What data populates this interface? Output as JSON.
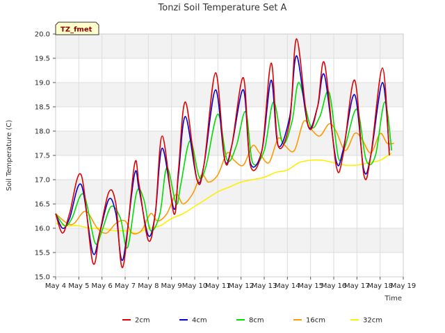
{
  "chart_data": {
    "type": "line",
    "title": "Tonzi Soil Temperature Set A",
    "xlabel": "Time",
    "ylabel": "Soil Temperature (C)",
    "station_tag": "TZ_fmet",
    "ylim": [
      15.0,
      20.0
    ],
    "xlim": [
      0,
      15
    ],
    "yticks": [
      "15.0",
      "15.5",
      "16.0",
      "16.5",
      "17.0",
      "17.5",
      "18.0",
      "18.5",
      "19.0",
      "19.5",
      "20.0"
    ],
    "xticks": [
      "May 4",
      "May 5",
      "May 6",
      "May 7",
      "May 8",
      "May 9",
      "May 10",
      "May 11",
      "May 12",
      "May 13",
      "May 14",
      "May 15",
      "May 16",
      "May 17",
      "May 18",
      "May 19"
    ],
    "grid": true,
    "legend_position": "bottom",
    "colors": {
      "2cm": "#dd0000",
      "4cm": "#0000cc",
      "8cm": "#00dd00",
      "16cm": "#ff9900",
      "32cm": "#ffee00"
    },
    "series": [
      {
        "name": "2cm",
        "x": [
          0.0,
          0.3,
          0.6,
          1.1,
          1.6,
          1.9,
          2.3,
          2.6,
          2.9,
          3.4,
          3.6,
          4.0,
          4.3,
          4.6,
          5.1,
          5.3,
          5.6,
          6.1,
          6.4,
          6.9,
          7.3,
          7.6,
          8.1,
          8.4,
          8.9,
          9.3,
          9.6,
          10.1,
          10.4,
          10.9,
          11.3,
          11.6,
          12.1,
          12.4,
          12.9,
          13.3,
          13.6,
          14.1,
          14.4
        ],
        "y": [
          16.3,
          15.9,
          16.3,
          17.1,
          15.3,
          15.9,
          16.75,
          16.5,
          15.2,
          17.3,
          16.9,
          15.75,
          16.3,
          17.9,
          16.3,
          17.2,
          18.6,
          17.0,
          17.3,
          19.2,
          17.4,
          17.7,
          19.1,
          17.3,
          17.6,
          19.4,
          17.7,
          18.2,
          19.9,
          18.1,
          18.5,
          19.4,
          17.3,
          17.5,
          19.05,
          17.1,
          17.5,
          19.3,
          17.5
        ]
      },
      {
        "name": "4cm",
        "x": [
          0.0,
          0.3,
          0.6,
          1.1,
          1.6,
          1.9,
          2.3,
          2.6,
          2.9,
          3.4,
          3.6,
          4.0,
          4.3,
          4.6,
          5.1,
          5.3,
          5.6,
          6.1,
          6.4,
          6.9,
          7.3,
          7.6,
          8.1,
          8.4,
          8.9,
          9.3,
          9.6,
          10.1,
          10.4,
          10.9,
          11.3,
          11.6,
          12.1,
          12.4,
          12.9,
          13.3,
          13.6,
          14.1,
          14.4
        ],
        "y": [
          16.3,
          16.0,
          16.2,
          16.9,
          15.5,
          15.9,
          16.6,
          16.3,
          15.35,
          17.1,
          16.8,
          15.85,
          16.3,
          17.65,
          16.4,
          17.1,
          18.3,
          17.0,
          17.3,
          18.85,
          17.4,
          17.7,
          18.85,
          17.35,
          17.6,
          19.05,
          17.7,
          18.3,
          19.55,
          18.1,
          18.5,
          19.15,
          17.4,
          17.6,
          18.75,
          17.2,
          17.5,
          19.0,
          17.6
        ]
      },
      {
        "name": "8cm",
        "x": [
          0.0,
          0.4,
          0.7,
          1.2,
          1.7,
          2.0,
          2.4,
          2.8,
          3.1,
          3.5,
          3.8,
          4.1,
          4.5,
          4.8,
          5.2,
          5.4,
          5.8,
          6.2,
          6.5,
          7.0,
          7.4,
          7.8,
          8.2,
          8.5,
          9.0,
          9.4,
          9.8,
          10.2,
          10.5,
          11.0,
          11.4,
          11.8,
          12.2,
          12.5,
          13.0,
          13.4,
          13.8,
          14.2,
          14.5
        ],
        "y": [
          16.3,
          16.05,
          16.2,
          16.7,
          15.7,
          15.95,
          16.45,
          16.2,
          15.6,
          16.75,
          16.6,
          15.95,
          16.3,
          17.25,
          16.5,
          16.9,
          17.8,
          17.05,
          17.3,
          18.35,
          17.4,
          17.7,
          18.4,
          17.35,
          17.6,
          18.6,
          17.75,
          18.2,
          19.0,
          18.1,
          18.3,
          18.8,
          17.45,
          17.7,
          18.45,
          17.4,
          17.5,
          18.6,
          17.6
        ]
      },
      {
        "name": "16cm",
        "x": [
          0.0,
          0.5,
          0.8,
          1.3,
          1.8,
          2.2,
          2.6,
          3.0,
          3.3,
          3.7,
          4.1,
          4.4,
          4.8,
          5.2,
          5.5,
          5.9,
          6.3,
          6.6,
          7.0,
          7.4,
          7.7,
          8.1,
          8.5,
          8.8,
          9.2,
          9.6,
          9.9,
          10.3,
          10.7,
          11.0,
          11.4,
          11.8,
          12.1,
          12.5,
          12.9,
          13.2,
          13.6,
          14.0,
          14.3,
          14.6
        ],
        "y": [
          16.3,
          16.1,
          16.1,
          16.35,
          16.0,
          15.9,
          16.1,
          16.15,
          15.9,
          15.95,
          16.3,
          16.15,
          16.3,
          16.7,
          16.5,
          16.7,
          17.1,
          16.95,
          17.1,
          17.55,
          17.4,
          17.3,
          17.7,
          17.55,
          17.35,
          17.85,
          17.7,
          17.6,
          18.2,
          18.05,
          17.9,
          18.15,
          18.0,
          17.6,
          17.95,
          17.85,
          17.55,
          17.95,
          17.75,
          17.75
        ]
      },
      {
        "name": "32cm",
        "x": [
          0.0,
          0.5,
          1.0,
          1.5,
          2.0,
          2.5,
          3.0,
          3.5,
          4.0,
          4.5,
          5.0,
          5.5,
          6.0,
          6.5,
          7.0,
          7.5,
          8.0,
          8.5,
          9.0,
          9.5,
          10.0,
          10.5,
          11.0,
          11.5,
          12.0,
          12.5,
          13.0,
          13.5,
          14.0,
          14.5
        ],
        "y": [
          16.1,
          16.05,
          16.05,
          16.0,
          16.0,
          15.95,
          15.95,
          15.9,
          16.0,
          16.05,
          16.2,
          16.3,
          16.45,
          16.6,
          16.75,
          16.85,
          16.95,
          17.0,
          17.05,
          17.15,
          17.2,
          17.35,
          17.4,
          17.4,
          17.35,
          17.3,
          17.3,
          17.35,
          17.4,
          17.55
        ]
      }
    ]
  }
}
